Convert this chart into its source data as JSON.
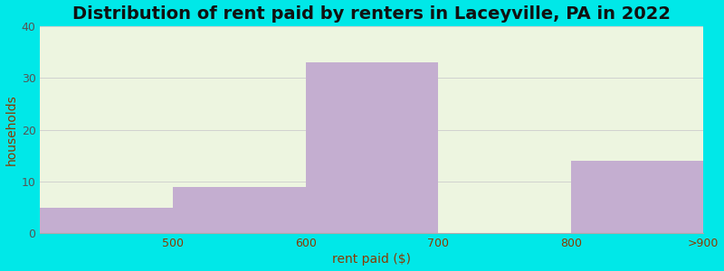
{
  "title": "Distribution of rent paid by renters in Laceyville, PA in 2022",
  "tick_labels": [
    "500",
    "600",
    "700",
    "800",
    ">900"
  ],
  "values": [
    5,
    9,
    33,
    0,
    14
  ],
  "bar_color": "#c4aed0",
  "xlabel": "rent paid ($)",
  "ylabel": "households",
  "ylim": [
    0,
    40
  ],
  "yticks": [
    0,
    10,
    20,
    30,
    40
  ],
  "bg_color_outer": "#00e8e8",
  "bg_color_plot_top": "#edf5e0",
  "bg_color_plot_bottom": "#f5f5ee",
  "title_fontsize": 14,
  "axis_label_fontsize": 10,
  "tick_fontsize": 9,
  "title_color": "#111111",
  "xlabel_color": "#8b3a00",
  "ylabel_color": "#8b3a00",
  "xtick_color": "#8b3a00",
  "ytick_color": "#555555"
}
